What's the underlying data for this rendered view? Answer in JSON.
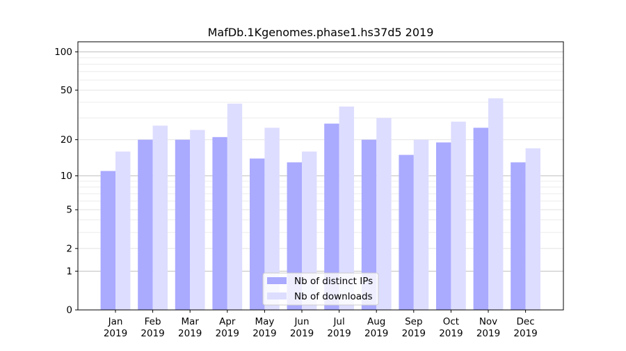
{
  "chart_data": {
    "type": "bar",
    "title": "MafDb.1Kgenomes.phase1.hs37d5 2019",
    "xlabel": "",
    "ylabel": "",
    "y_scale": "log1p",
    "y_ticks": [
      0,
      1,
      2,
      5,
      10,
      20,
      50,
      100
    ],
    "ylim": [
      0,
      120
    ],
    "grid": "horizontal",
    "legend_position": "bottom-center",
    "categories": [
      [
        "Jan",
        "2019"
      ],
      [
        "Feb",
        "2019"
      ],
      [
        "Mar",
        "2019"
      ],
      [
        "Apr",
        "2019"
      ],
      [
        "May",
        "2019"
      ],
      [
        "Jun",
        "2019"
      ],
      [
        "Jul",
        "2019"
      ],
      [
        "Aug",
        "2019"
      ],
      [
        "Sep",
        "2019"
      ],
      [
        "Oct",
        "2019"
      ],
      [
        "Nov",
        "2019"
      ],
      [
        "Dec",
        "2019"
      ]
    ],
    "series": [
      {
        "name": "Nb of distinct IPs",
        "color": "#aaaaff",
        "values": [
          11,
          20,
          20,
          21,
          14,
          13,
          27,
          20,
          15,
          19,
          25,
          13
        ]
      },
      {
        "name": "Nb of downloads",
        "color": "#ddddff",
        "values": [
          16,
          26,
          24,
          39,
          25,
          16,
          37,
          30,
          20,
          28,
          43,
          17
        ]
      }
    ]
  }
}
